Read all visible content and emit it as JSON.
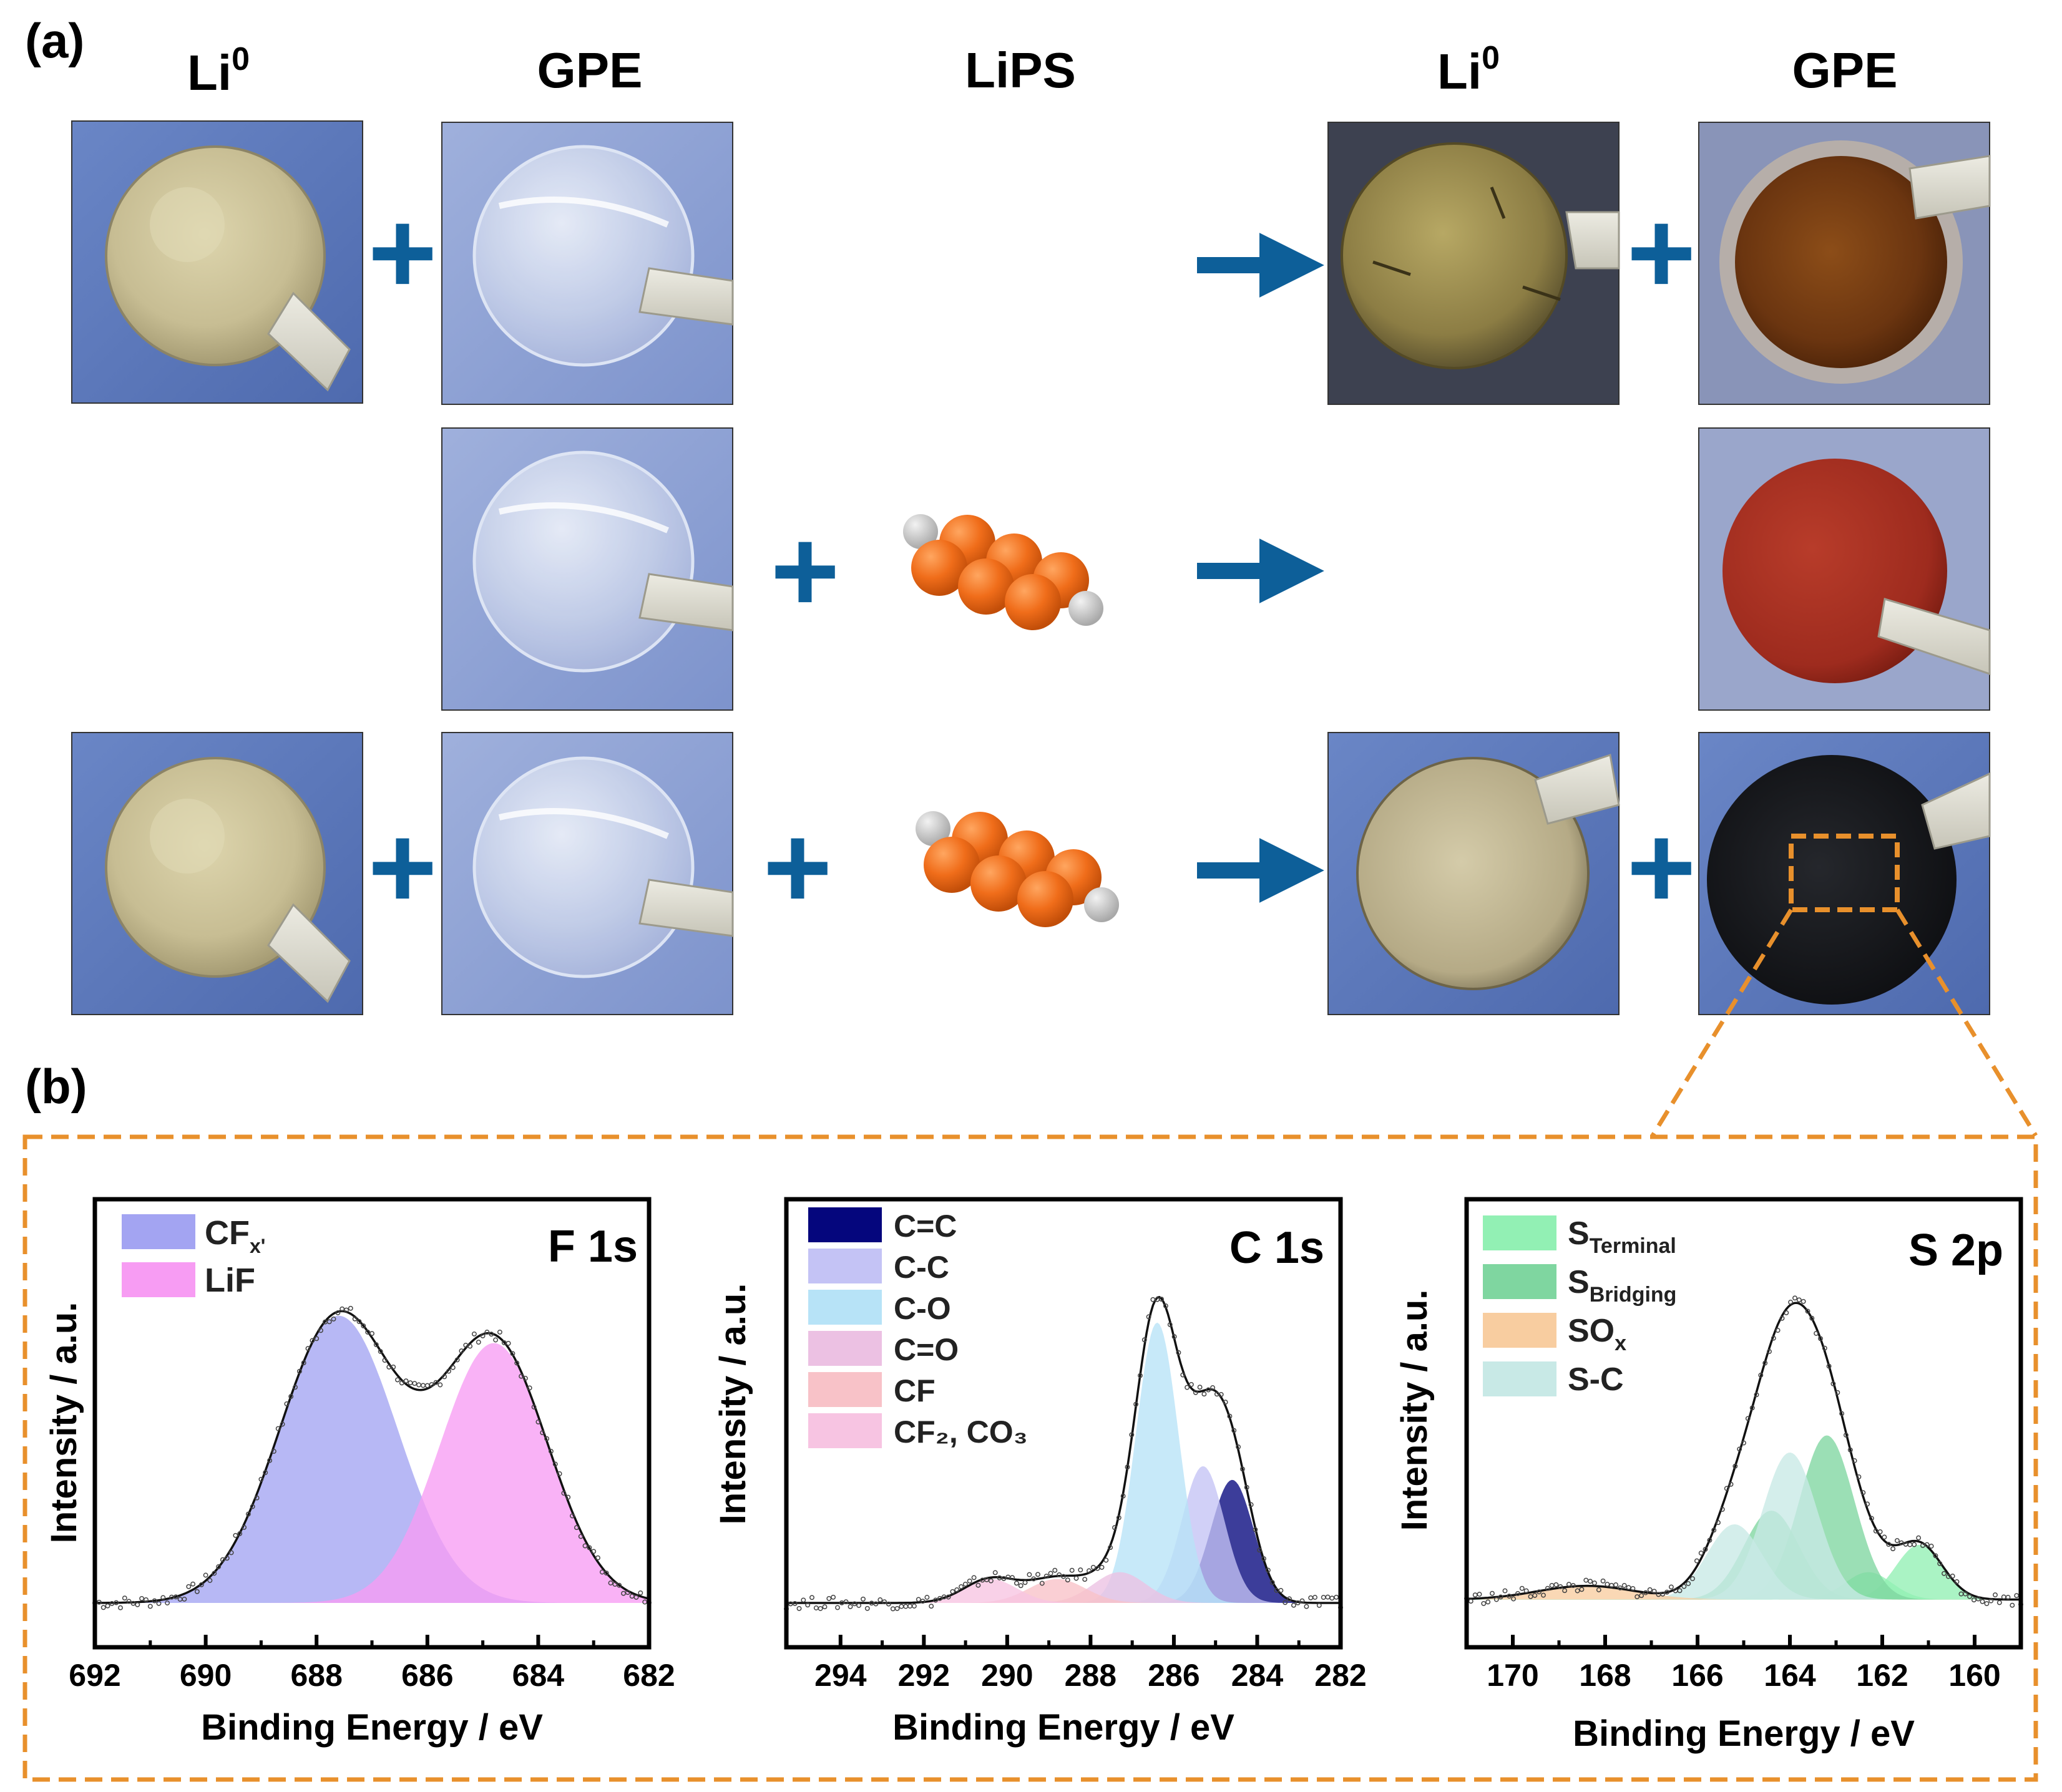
{
  "panels": {
    "a_label": "(a)",
    "b_label": "(b)"
  },
  "headers": {
    "li0": {
      "base": "Li",
      "sup": "0"
    },
    "gpe": "GPE",
    "lips": "LiPS",
    "li0_after": {
      "base": "Li",
      "sup": "0"
    },
    "gpe_after": "GPE"
  },
  "symbols": {
    "plus": "+",
    "arrow": "arrow"
  },
  "colors": {
    "arrow": "#0d5f99",
    "background_blue": "#5a77b8",
    "lithium": "#c9c09a",
    "orange_molecule": "#ef6c1a",
    "dash_orange": "#e8902c"
  },
  "charts": [
    {
      "id": "f1s",
      "title": "F 1s",
      "xlabel": "Binding Energy / eV",
      "ylabel": "Intensity / a.u.",
      "xticks": [
        "692",
        "690",
        "688",
        "686",
        "684",
        "682"
      ],
      "legend": [
        {
          "base": "CF",
          "sub": "x'",
          "color": "#a3a4f2"
        },
        {
          "base": "LiF",
          "sub": "",
          "color": "#f79cf3"
        }
      ]
    },
    {
      "id": "c1s",
      "title": "C 1s",
      "xlabel": "Binding Energy / eV",
      "ylabel": "Intensity / a.u.",
      "xticks": [
        "294",
        "292",
        "290",
        "288",
        "286",
        "284",
        "282"
      ],
      "legend": [
        {
          "text": "C=C",
          "color": "#05067d"
        },
        {
          "text": "C-C",
          "color": "#c4c3f5"
        },
        {
          "text": "C-O",
          "color": "#b7e3f7"
        },
        {
          "text": "C=O",
          "color": "#ecc1e3"
        },
        {
          "text": "CF",
          "color": "#f8c2c8"
        },
        {
          "text": "CF₂, CO₃",
          "color": "#f7c4e2"
        }
      ]
    },
    {
      "id": "s2p",
      "title": "S 2p",
      "xlabel": "Binding Energy / eV",
      "ylabel": "Intensity / a.u.",
      "xticks": [
        "170",
        "168",
        "166",
        "164",
        "162",
        "160"
      ],
      "legend": [
        {
          "base": "S",
          "sub": "Terminal",
          "color": "#92f0b4"
        },
        {
          "base": "S",
          "sub": "Bridging",
          "color": "#7fd6a0"
        },
        {
          "base": "SO",
          "sub": "x",
          "color": "#f8cda0"
        },
        {
          "base": "S-C",
          "sub": "",
          "color": "#c8e9e6"
        }
      ]
    }
  ],
  "chart_data": [
    {
      "type": "area",
      "title": "F 1s",
      "xlabel": "Binding Energy / eV",
      "ylabel": "Intensity / a.u.",
      "xlim": [
        692,
        682
      ],
      "ylim": [
        0,
        1
      ],
      "background": 0.02,
      "series": [
        {
          "name": "CFx'",
          "color": "#a3a4f2",
          "center": 687.6,
          "fwhm": 2.5,
          "height": 0.84
        },
        {
          "name": "LiF",
          "color": "#f79cf3",
          "center": 684.8,
          "fwhm": 2.3,
          "height": 0.76
        }
      ]
    },
    {
      "type": "area",
      "title": "C 1s",
      "xlabel": "Binding Energy / eV",
      "ylabel": "Intensity / a.u.",
      "xlim": [
        295.3,
        282
      ],
      "ylim": [
        0,
        1
      ],
      "background": 0.02,
      "series": [
        {
          "name": "C=C",
          "color": "#05067d",
          "center": 284.6,
          "fwhm": 1.2,
          "height": 0.36
        },
        {
          "name": "C-C",
          "color": "#c4c3f5",
          "center": 285.3,
          "fwhm": 1.2,
          "height": 0.4
        },
        {
          "name": "C-O",
          "color": "#b7e3f7",
          "center": 286.4,
          "fwhm": 1.2,
          "height": 0.82
        },
        {
          "name": "C=O",
          "color": "#ecc1e3",
          "center": 287.3,
          "fwhm": 1.5,
          "height": 0.09
        },
        {
          "name": "CF",
          "color": "#f8c2c8",
          "center": 288.8,
          "fwhm": 1.6,
          "height": 0.07
        },
        {
          "name": "CF2, CO3",
          "color": "#f7c4e2",
          "center": 290.4,
          "fwhm": 1.5,
          "height": 0.07
        }
      ]
    },
    {
      "type": "area",
      "title": "S 2p",
      "xlabel": "Binding Energy / eV",
      "ylabel": "Intensity / a.u.",
      "xlim": [
        171,
        159
      ],
      "ylim": [
        0,
        1
      ],
      "background": 0.03,
      "series": [
        {
          "name": "STerminal",
          "color": "#92f0b4",
          "center": 161.2,
          "fwhm": 1.2,
          "height": 0.16
        },
        {
          "name": "STerminal",
          "color": "#92f0b4",
          "center": 162.3,
          "fwhm": 1.2,
          "height": 0.08
        },
        {
          "name": "SBridging",
          "color": "#7fd6a0",
          "center": 163.2,
          "fwhm": 1.4,
          "height": 0.48
        },
        {
          "name": "SBridging",
          "color": "#7fd6a0",
          "center": 164.4,
          "fwhm": 1.4,
          "height": 0.26
        },
        {
          "name": "S-C",
          "color": "#c8e9e6",
          "center": 164.0,
          "fwhm": 1.4,
          "height": 0.43
        },
        {
          "name": "S-C",
          "color": "#c8e9e6",
          "center": 165.2,
          "fwhm": 1.4,
          "height": 0.22
        },
        {
          "name": "SOx",
          "color": "#f8cda0",
          "center": 168.4,
          "fwhm": 2.5,
          "height": 0.04
        }
      ]
    }
  ]
}
